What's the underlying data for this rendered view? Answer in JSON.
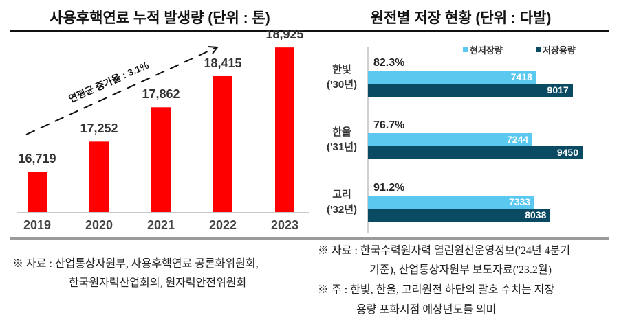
{
  "chart_data": [
    {
      "type": "bar",
      "title": "사용후핵연료 누적 발생량 (단위 : 톤)",
      "categories": [
        "2019",
        "2020",
        "2021",
        "2022",
        "2023"
      ],
      "values": [
        16719,
        17252,
        17862,
        18415,
        18925
      ],
      "value_labels": [
        "16,719",
        "17,252",
        "17,862",
        "18,415",
        "18,925"
      ],
      "ylim": [
        16000,
        19000
      ],
      "color": "#ff0000",
      "annotation": "연평균 증가율 : 3.1%",
      "grid": false
    },
    {
      "type": "bar",
      "orientation": "horizontal",
      "title": "원전별 저장 현황 (단위 : 다발)",
      "categories": [
        {
          "name": "한빛",
          "year": "('30년)",
          "ratio": "82.3%"
        },
        {
          "name": "한울",
          "year": "('31년)",
          "ratio": "76.7%"
        },
        {
          "name": "고리",
          "year": "('32년)",
          "ratio": "91.2%"
        }
      ],
      "series": [
        {
          "name": "현저장량",
          "color": "#5bc8f0",
          "values": [
            7418,
            7244,
            7333
          ]
        },
        {
          "name": "저장용량",
          "color": "#0b4a63",
          "values": [
            9017,
            9450,
            8038
          ]
        }
      ],
      "xlim": [
        0,
        9450
      ],
      "legend": "top-right",
      "grid": false
    }
  ],
  "notes": {
    "left_source_line1": "※ 자료 : 산업통상자원부, 사용후핵연료 공론화위원회,",
    "left_source_line2": "한국원자력산업회의, 원자력안전위원회",
    "right_source_line1": "※ 자료 : 한국수력원자력 열린원전운영정보('24년 4분기",
    "right_source_line2": "기준), 산업통상자원부 보도자료('23.2월)",
    "right_note_line1": "※ 주 : 한빛, 한울, 고리원전 하단의 괄호 수치는 저장",
    "right_note_line2": "용량 포화시점 예상년도를 의미"
  }
}
